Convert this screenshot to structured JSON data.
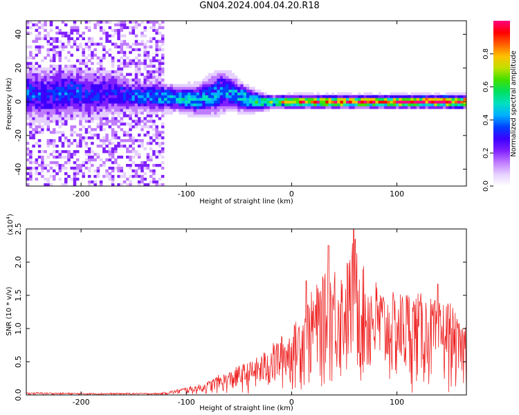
{
  "page": {
    "title": "GN04.2024.004.04.20.R18"
  },
  "chart_data": [
    {
      "type": "heatmap",
      "xlabel": "Height of straight line (km)",
      "ylabel": "Frequency (Hz)",
      "xlim": [
        -252,
        166
      ],
      "ylim": [
        -50,
        48
      ],
      "x_ticks": [
        -200,
        -100,
        0,
        100
      ],
      "y_ticks": [
        -40,
        -20,
        0,
        20,
        40
      ],
      "x_tick_labels": [
        "-200",
        "-100",
        "0",
        "100"
      ],
      "y_tick_labels": [
        "-40",
        "-20",
        "0",
        "20",
        "40"
      ],
      "colorbar": {
        "label": "Normalized spectral amplitude",
        "range": [
          0,
          1
        ],
        "ticks": [
          0.0,
          0.2,
          0.4,
          0.6,
          0.8
        ],
        "tick_labels": [
          "0.0",
          "0.2",
          "0.4",
          "0.6",
          "0.8"
        ],
        "colormap": [
          "#ffffff",
          "#e6d0ff",
          "#c07cff",
          "#8020ff",
          "#3c00ff",
          "#0040ff",
          "#00b0ff",
          "#00e0c0",
          "#00e060",
          "#40e000",
          "#c0e000",
          "#ffc000",
          "#ff6000",
          "#ff0000",
          "#ff0080"
        ]
      },
      "ridge": {
        "x": [
          -252,
          -230,
          -210,
          -190,
          -170,
          -150,
          -130,
          -110,
          -90,
          -70,
          -60,
          -50,
          -40,
          -30,
          -20,
          -10,
          0,
          20,
          50,
          80,
          110,
          140,
          166
        ],
        "center_hz": [
          5,
          4,
          6,
          4,
          5,
          3,
          3,
          2,
          1,
          5,
          6,
          3,
          1,
          0,
          0,
          0,
          0,
          0,
          0,
          0,
          0,
          0,
          0
        ],
        "spread_hz": [
          8,
          9,
          8,
          8,
          7,
          5,
          5,
          4,
          5,
          7,
          6,
          5,
          4,
          3,
          2,
          2,
          2,
          2,
          2,
          2,
          2,
          2,
          2
        ],
        "amplitude": [
          0.35,
          0.3,
          0.35,
          0.3,
          0.3,
          0.35,
          0.4,
          0.45,
          0.45,
          0.4,
          0.4,
          0.45,
          0.5,
          0.55,
          0.6,
          0.7,
          0.8,
          0.82,
          0.85,
          0.87,
          0.88,
          0.9,
          0.9
        ]
      },
      "noise_region_x": [
        -252,
        -122
      ]
    },
    {
      "type": "line",
      "xlabel": "Height of straight line (km)",
      "ylabel": "SNR (10 * v/v)",
      "y_scale_label": "(x10",
      "y_scale_exponent": "4",
      "y_scale_suffix": ")",
      "xlim": [
        -252,
        166
      ],
      "ylim": [
        0,
        2.5
      ],
      "x_ticks": [
        -200,
        -100,
        0,
        100
      ],
      "y_ticks": [
        0.0,
        0.5,
        1.0,
        1.5,
        2.0,
        2.5
      ],
      "x_tick_labels": [
        "-200",
        "-100",
        "0",
        "100"
      ],
      "y_tick_labels": [
        "0.0",
        "0.5",
        "1.0",
        "1.5",
        "2.0",
        "2.5"
      ],
      "color": "#ee2222",
      "envelope": {
        "x": [
          -252,
          -200,
          -150,
          -125,
          -110,
          -100,
          -90,
          -80,
          -70,
          -60,
          -50,
          -40,
          -30,
          -20,
          -10,
          0,
          10,
          20,
          30,
          40,
          50,
          60,
          70,
          80,
          90,
          100,
          110,
          120,
          130,
          140,
          150,
          160,
          166
        ],
        "y": [
          0.04,
          0.03,
          0.03,
          0.03,
          0.08,
          0.12,
          0.15,
          0.2,
          0.3,
          0.35,
          0.45,
          0.5,
          0.6,
          0.75,
          0.9,
          1.0,
          1.3,
          1.6,
          1.8,
          2.0,
          1.9,
          2.45,
          1.85,
          1.75,
          1.55,
          1.55,
          1.6,
          1.55,
          1.5,
          1.4,
          1.45,
          1.05,
          1.15
        ]
      },
      "peaks": [
        {
          "x": 35,
          "y": 2.25
        },
        {
          "x": 59,
          "y": 2.5
        },
        {
          "x": 14,
          "y": 1.72
        },
        {
          "x": 139,
          "y": 1.67
        }
      ]
    }
  ]
}
